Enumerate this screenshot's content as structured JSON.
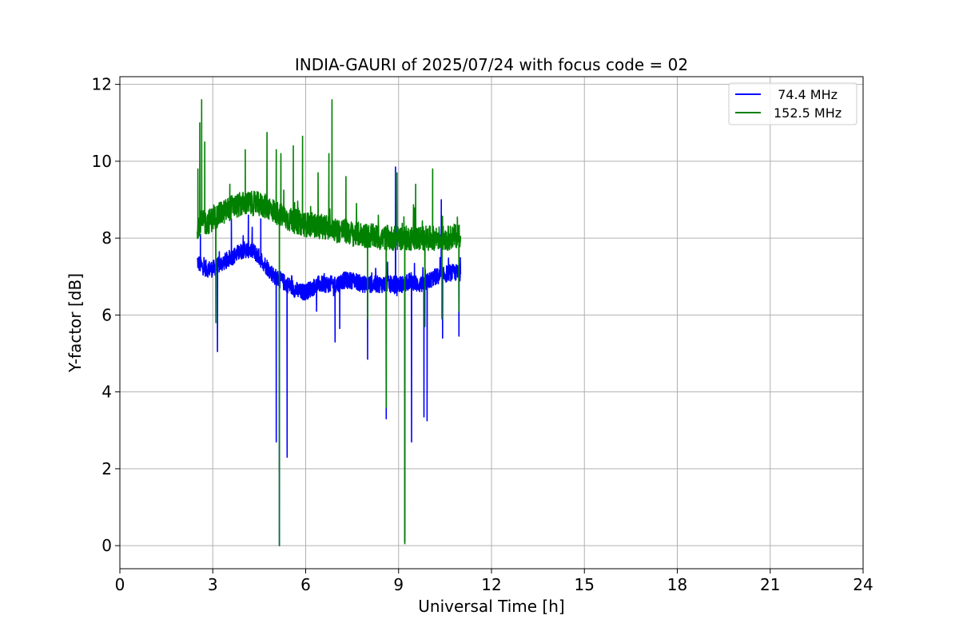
{
  "chart_data": {
    "type": "line",
    "title": "INDIA-GAURI of 2025/07/24 with focus code = 02",
    "xlabel": "Universal Time [h]",
    "ylabel": "Y-factor [dB]",
    "xlim": [
      0,
      24
    ],
    "ylim": [
      -0.6,
      12.2
    ],
    "xticks": [
      0,
      3,
      6,
      9,
      12,
      15,
      18,
      21,
      24
    ],
    "yticks": [
      0,
      2,
      4,
      6,
      8,
      10,
      12
    ],
    "xtick_labels": [
      "0",
      "3",
      "6",
      "9",
      "12",
      "15",
      "18",
      "21",
      "24"
    ],
    "ytick_labels": [
      "0",
      "2",
      "4",
      "6",
      "8",
      "10",
      "12"
    ],
    "grid": true,
    "legend_position": "top-right",
    "series": [
      {
        "name": " 74.4 MHz",
        "color": "#0000ff",
        "x": [
          2.5,
          2.6,
          2.8,
          3.0,
          3.2,
          3.4,
          3.6,
          3.8,
          4.0,
          4.2,
          4.4,
          4.6,
          4.8,
          5.0,
          5.2,
          5.4,
          5.6,
          5.8,
          6.0,
          6.2,
          6.4,
          6.6,
          6.8,
          7.0,
          7.2,
          7.4,
          7.6,
          7.8,
          8.0,
          8.2,
          8.4,
          8.6,
          8.8,
          9.0,
          9.2,
          9.4,
          9.6,
          9.8,
          10.0,
          10.2,
          10.4,
          10.6,
          10.8,
          11.0
        ],
        "values": [
          7.4,
          7.3,
          7.2,
          7.2,
          7.3,
          7.4,
          7.5,
          7.6,
          7.7,
          7.7,
          7.6,
          7.4,
          7.2,
          7.0,
          6.9,
          6.8,
          6.7,
          6.6,
          6.6,
          6.7,
          6.8,
          6.8,
          6.8,
          6.8,
          6.9,
          6.9,
          6.9,
          6.8,
          6.8,
          6.8,
          6.8,
          6.8,
          6.8,
          6.8,
          6.8,
          6.9,
          6.8,
          6.8,
          6.9,
          7.0,
          7.0,
          7.1,
          7.1,
          7.1
        ],
        "spikes": [
          {
            "x": 2.6,
            "y": 8.1
          },
          {
            "x": 3.15,
            "y": 5.05
          },
          {
            "x": 3.6,
            "y": 8.5
          },
          {
            "x": 4.15,
            "y": 8.6
          },
          {
            "x": 4.55,
            "y": 8.5
          },
          {
            "x": 5.05,
            "y": 2.7
          },
          {
            "x": 5.15,
            "y": 0.0
          },
          {
            "x": 5.4,
            "y": 2.3
          },
          {
            "x": 6.35,
            "y": 6.1
          },
          {
            "x": 6.95,
            "y": 5.3
          },
          {
            "x": 7.1,
            "y": 5.65
          },
          {
            "x": 8.0,
            "y": 4.85
          },
          {
            "x": 8.6,
            "y": 3.3
          },
          {
            "x": 8.9,
            "y": 9.85
          },
          {
            "x": 9.2,
            "y": 0.1
          },
          {
            "x": 9.42,
            "y": 2.7
          },
          {
            "x": 9.82,
            "y": 3.35
          },
          {
            "x": 9.92,
            "y": 3.25
          },
          {
            "x": 10.38,
            "y": 9.0
          },
          {
            "x": 10.42,
            "y": 5.4
          },
          {
            "x": 10.95,
            "y": 5.45
          }
        ]
      },
      {
        "name": "152.5 MHz",
        "color": "#008000",
        "x": [
          2.5,
          2.6,
          2.8,
          3.0,
          3.2,
          3.4,
          3.6,
          3.8,
          4.0,
          4.2,
          4.4,
          4.6,
          4.8,
          5.0,
          5.2,
          5.4,
          5.6,
          5.8,
          6.0,
          6.2,
          6.4,
          6.6,
          6.8,
          7.0,
          7.2,
          7.4,
          7.6,
          7.8,
          8.0,
          8.2,
          8.4,
          8.6,
          8.8,
          9.0,
          9.2,
          9.4,
          9.6,
          9.8,
          10.0,
          10.2,
          10.4,
          10.6,
          10.8,
          11.0
        ],
        "values": [
          8.3,
          8.4,
          8.4,
          8.5,
          8.6,
          8.7,
          8.8,
          8.85,
          8.9,
          8.9,
          8.9,
          8.85,
          8.8,
          8.7,
          8.6,
          8.5,
          8.45,
          8.4,
          8.35,
          8.35,
          8.3,
          8.3,
          8.25,
          8.2,
          8.2,
          8.15,
          8.1,
          8.1,
          8.05,
          8.05,
          8.0,
          8.0,
          8.0,
          8.0,
          8.0,
          8.0,
          8.0,
          8.0,
          8.0,
          8.0,
          8.0,
          8.0,
          8.05,
          8.1
        ],
        "spikes": [
          {
            "x": 2.52,
            "y": 9.8
          },
          {
            "x": 2.58,
            "y": 11.0
          },
          {
            "x": 2.64,
            "y": 11.6
          },
          {
            "x": 2.74,
            "y": 10.5
          },
          {
            "x": 3.1,
            "y": 5.8
          },
          {
            "x": 3.55,
            "y": 9.4
          },
          {
            "x": 4.05,
            "y": 10.3
          },
          {
            "x": 4.75,
            "y": 10.75
          },
          {
            "x": 5.05,
            "y": 10.3
          },
          {
            "x": 5.15,
            "y": 0.0
          },
          {
            "x": 5.2,
            "y": 10.2
          },
          {
            "x": 5.6,
            "y": 10.4
          },
          {
            "x": 5.9,
            "y": 10.65
          },
          {
            "x": 6.4,
            "y": 9.7
          },
          {
            "x": 6.75,
            "y": 10.2
          },
          {
            "x": 6.85,
            "y": 11.6
          },
          {
            "x": 7.3,
            "y": 9.6
          },
          {
            "x": 8.0,
            "y": 5.9
          },
          {
            "x": 8.6,
            "y": 3.6
          },
          {
            "x": 8.95,
            "y": 9.7
          },
          {
            "x": 9.2,
            "y": 0.05
          },
          {
            "x": 9.55,
            "y": 9.4
          },
          {
            "x": 9.85,
            "y": 5.7
          },
          {
            "x": 10.1,
            "y": 9.8
          },
          {
            "x": 10.4,
            "y": 5.9
          },
          {
            "x": 10.95,
            "y": 6.1
          }
        ]
      }
    ]
  }
}
